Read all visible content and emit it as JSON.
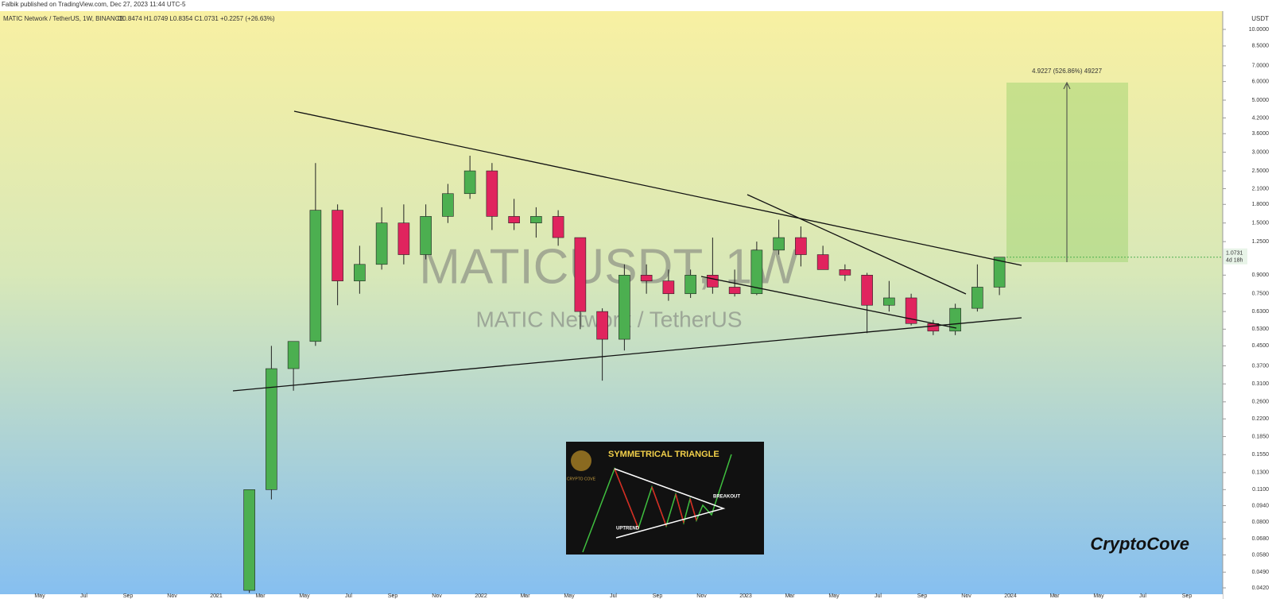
{
  "chart_data": {
    "type": "candlestick",
    "published": "Falbik published on TradingView.com, Dec 27, 2023 11:44 UTC-5",
    "title": "MATIC Network / TetherUS, 1W, BINANCE",
    "ohlc_summary": "O0.8474 H1.0749 L0.8354 C1.0731 +0.2257 (+26.63%)",
    "watermark": [
      "MATICUSDT, 1W",
      "MATIC Network / TetherUS"
    ],
    "currency": "USDT",
    "last_price": 1.0731,
    "countdown": "4d 18h",
    "target_label": "4.9227 (526.86%) 49227",
    "brand": "CryptoCove",
    "inset": {
      "title": "SYMMETRICAL TRIANGLE",
      "logo": "CRYPTO COVE",
      "uptrend": "UPTREND",
      "breakout": "BREAKOUT"
    },
    "up_color": "#4caf50",
    "down_color": "#e0245e",
    "log_scale": true,
    "ylim": [
      0.042,
      10
    ],
    "yticks": [
      {
        "value": 10,
        "label": "10.0000"
      },
      {
        "value": 8.5,
        "label": "8.5000"
      },
      {
        "value": 7,
        "label": "7.0000"
      },
      {
        "value": 6,
        "label": "6.0000"
      },
      {
        "value": 5,
        "label": "5.0000"
      },
      {
        "value": 4.2,
        "label": "4.2000"
      },
      {
        "value": 3.6,
        "label": "3.6000"
      },
      {
        "value": 3,
        "label": "3.0000"
      },
      {
        "value": 2.5,
        "label": "2.5000"
      },
      {
        "value": 2.1,
        "label": "2.1000"
      },
      {
        "value": 1.8,
        "label": "1.8000"
      },
      {
        "value": 1.5,
        "label": "1.5000"
      },
      {
        "value": 1.25,
        "label": "1.2500"
      },
      {
        "value": 0.9,
        "label": "0.9000"
      },
      {
        "value": 0.75,
        "label": "0.7500"
      },
      {
        "value": 0.63,
        "label": "0.6300"
      },
      {
        "value": 0.53,
        "label": "0.5300"
      },
      {
        "value": 0.45,
        "label": "0.4500"
      },
      {
        "value": 0.37,
        "label": "0.3700"
      },
      {
        "value": 0.31,
        "label": "0.3100"
      },
      {
        "value": 0.26,
        "label": "0.2600"
      },
      {
        "value": 0.22,
        "label": "0.2200"
      },
      {
        "value": 0.185,
        "label": "0.1850"
      },
      {
        "value": 0.155,
        "label": "0.1550"
      },
      {
        "value": 0.13,
        "label": "0.1300"
      },
      {
        "value": 0.11,
        "label": "0.1100"
      },
      {
        "value": 0.094,
        "label": "0.0940"
      },
      {
        "value": 0.08,
        "label": "0.0800"
      },
      {
        "value": 0.068,
        "label": "0.0680"
      },
      {
        "value": 0.058,
        "label": "0.0580"
      },
      {
        "value": 0.049,
        "label": "0.0490"
      },
      {
        "value": 0.042,
        "label": "0.0420"
      }
    ],
    "xticks": [
      {
        "value": "2020-05",
        "label": "May"
      },
      {
        "value": "2020-07",
        "label": "Jul"
      },
      {
        "value": "2020-09",
        "label": "Sep"
      },
      {
        "value": "2020-11",
        "label": "Nov"
      },
      {
        "value": "2021-01",
        "label": "2021"
      },
      {
        "value": "2021-03",
        "label": "Mar"
      },
      {
        "value": "2021-05",
        "label": "May"
      },
      {
        "value": "2021-07",
        "label": "Jul"
      },
      {
        "value": "2021-09",
        "label": "Sep"
      },
      {
        "value": "2021-11",
        "label": "Nov"
      },
      {
        "value": "2022-01",
        "label": "2022"
      },
      {
        "value": "2022-03",
        "label": "Mar"
      },
      {
        "value": "2022-05",
        "label": "May"
      },
      {
        "value": "2022-07",
        "label": "Jul"
      },
      {
        "value": "2022-09",
        "label": "Sep"
      },
      {
        "value": "2022-11",
        "label": "Nov"
      },
      {
        "value": "2023-01",
        "label": "2023"
      },
      {
        "value": "2023-03",
        "label": "Mar"
      },
      {
        "value": "2023-05",
        "label": "May"
      },
      {
        "value": "2023-07",
        "label": "Jul"
      },
      {
        "value": "2023-09",
        "label": "Sep"
      },
      {
        "value": "2023-11",
        "label": "Nov"
      },
      {
        "value": "2024-01",
        "label": "2024"
      },
      {
        "value": "2024-03",
        "label": "Mar"
      },
      {
        "value": "2024-05",
        "label": "May"
      },
      {
        "value": "2024-07",
        "label": "Jul"
      },
      {
        "value": "2024-09",
        "label": "Sep"
      }
    ],
    "x": [
      "2021-02",
      "2021-03",
      "2021-04",
      "2021-05",
      "2021-06",
      "2021-07",
      "2021-08",
      "2021-09",
      "2021-10",
      "2021-11",
      "2021-12",
      "2022-01",
      "2022-02",
      "2022-03",
      "2022-04",
      "2022-05",
      "2022-06",
      "2022-07",
      "2022-08",
      "2022-09",
      "2022-10",
      "2022-11",
      "2022-12",
      "2023-01",
      "2023-02",
      "2023-03",
      "2023-04",
      "2023-05",
      "2023-06",
      "2023-07",
      "2023-08",
      "2023-09",
      "2023-10",
      "2023-11",
      "2023-12"
    ],
    "open": [
      0.041,
      0.11,
      0.36,
      0.47,
      1.7,
      0.85,
      1.0,
      1.5,
      1.1,
      1.6,
      2.0,
      2.5,
      1.6,
      1.5,
      1.6,
      1.3,
      0.63,
      0.48,
      0.9,
      0.85,
      0.75,
      0.9,
      0.8,
      0.75,
      1.15,
      1.3,
      1.1,
      0.95,
      0.9,
      0.67,
      0.72,
      0.56,
      0.52,
      0.65,
      0.8
    ],
    "high": [
      0.1,
      0.45,
      0.45,
      2.7,
      1.8,
      1.2,
      1.75,
      1.8,
      1.8,
      2.2,
      2.9,
      2.7,
      1.9,
      1.75,
      1.7,
      1.3,
      0.65,
      1.0,
      1.0,
      0.95,
      0.95,
      1.3,
      0.95,
      1.25,
      1.55,
      1.45,
      1.2,
      1.0,
      0.92,
      0.85,
      0.75,
      0.58,
      0.68,
      1.0,
      1.0749
    ],
    "low": [
      0.04,
      0.1,
      0.29,
      0.45,
      0.67,
      0.75,
      0.95,
      1.0,
      1.05,
      1.5,
      1.9,
      1.4,
      1.4,
      1.3,
      1.2,
      0.53,
      0.32,
      0.43,
      0.75,
      0.7,
      0.72,
      0.75,
      0.73,
      0.74,
      1.1,
      0.98,
      0.95,
      0.85,
      0.51,
      0.63,
      0.55,
      0.5,
      0.5,
      0.63,
      0.74
    ],
    "close": [
      0.11,
      0.36,
      0.47,
      1.7,
      0.85,
      1.0,
      1.5,
      1.1,
      1.6,
      2.0,
      2.5,
      1.6,
      1.5,
      1.6,
      1.3,
      0.63,
      0.48,
      0.9,
      0.85,
      0.75,
      0.9,
      0.8,
      0.75,
      1.15,
      1.3,
      1.1,
      0.95,
      0.9,
      0.67,
      0.72,
      0.56,
      0.52,
      0.65,
      0.8,
      1.0731
    ]
  }
}
